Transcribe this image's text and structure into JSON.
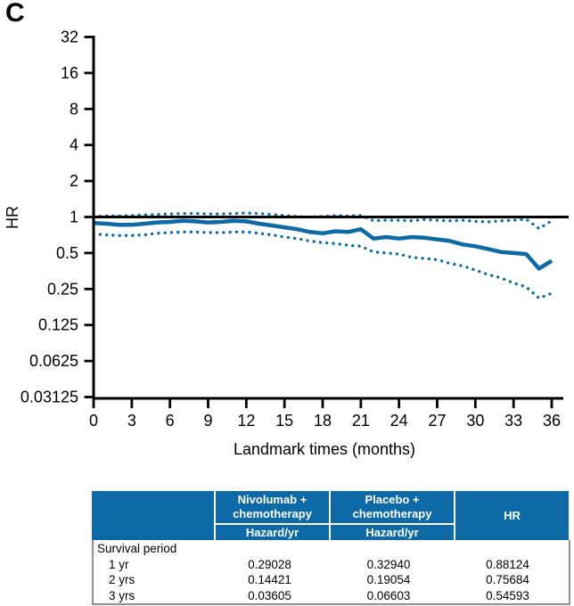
{
  "panel_label": "C",
  "colors": {
    "accent_blue": "#0e6aa6",
    "reference_black": "#000000",
    "table_border_gray": "#8f8f8f"
  },
  "chart_data": {
    "type": "line",
    "title": "",
    "xlabel": "Landmark times (months)",
    "ylabel": "HR",
    "grid": false,
    "legend_position": "none",
    "x_axis": {
      "min": 0,
      "max": 36,
      "ticks": [
        0,
        3,
        6,
        9,
        12,
        15,
        18,
        21,
        24,
        27,
        30,
        33,
        36
      ]
    },
    "y_axis": {
      "scale": "log2",
      "min": 0.03125,
      "max": 32,
      "ticks": [
        32,
        16,
        8,
        4,
        2,
        1,
        0.5,
        0.25,
        0.125,
        0.0625,
        0.03125
      ],
      "tick_labels": [
        "32",
        "16",
        "8",
        "4",
        "2",
        "1",
        "0.5",
        "0.25",
        "0.125",
        "0.0625",
        "0.03125"
      ]
    },
    "reference_line_y": 1,
    "x": [
      0,
      1,
      2,
      3,
      4,
      5,
      6,
      7,
      8,
      9,
      10,
      11,
      12,
      13,
      14,
      15,
      16,
      17,
      18,
      19,
      20,
      21,
      22,
      23,
      24,
      25,
      26,
      27,
      28,
      29,
      30,
      31,
      32,
      33,
      34,
      35,
      36
    ],
    "series": [
      {
        "name": "HR",
        "line_style": "solid",
        "color": "#0e6aa6",
        "values": [
          0.89,
          0.88,
          0.86,
          0.86,
          0.88,
          0.9,
          0.91,
          0.93,
          0.92,
          0.9,
          0.91,
          0.93,
          0.92,
          0.88,
          0.85,
          0.82,
          0.79,
          0.75,
          0.73,
          0.76,
          0.75,
          0.79,
          0.66,
          0.68,
          0.66,
          0.68,
          0.67,
          0.65,
          0.63,
          0.59,
          0.57,
          0.54,
          0.51,
          0.5,
          0.49,
          0.37,
          0.43
        ]
      },
      {
        "name": "CI upper",
        "line_style": "dotted",
        "color": "#0e6aa6",
        "values": [
          1.01,
          1.02,
          1.02,
          1.03,
          1.04,
          1.05,
          1.06,
          1.07,
          1.07,
          1.06,
          1.06,
          1.07,
          1.08,
          1.07,
          1.05,
          1.03,
          1.01,
          1.0,
          1.01,
          1.03,
          1.02,
          1.03,
          0.93,
          0.94,
          0.94,
          0.93,
          0.95,
          0.94,
          0.93,
          0.94,
          0.92,
          0.91,
          0.93,
          0.94,
          0.96,
          0.8,
          0.93
        ]
      },
      {
        "name": "CI lower",
        "line_style": "dotted",
        "color": "#0e6aa6",
        "values": [
          0.72,
          0.71,
          0.7,
          0.7,
          0.71,
          0.73,
          0.74,
          0.75,
          0.75,
          0.74,
          0.74,
          0.75,
          0.75,
          0.73,
          0.71,
          0.68,
          0.66,
          0.63,
          0.61,
          0.6,
          0.58,
          0.57,
          0.51,
          0.5,
          0.49,
          0.46,
          0.45,
          0.44,
          0.41,
          0.39,
          0.36,
          0.33,
          0.31,
          0.28,
          0.26,
          0.21,
          0.23
        ]
      }
    ]
  },
  "table": {
    "headers": {
      "group1": "Nivolumab +\nchemotherapy",
      "group2": "Placebo +\nchemotherapy",
      "hr": "HR",
      "sub1": "Hazard/yr",
      "sub2": "Hazard/yr"
    },
    "section_label": "Survival period",
    "rows": [
      {
        "period": "1 yr",
        "nivo": "0.29028",
        "placebo": "0.32940",
        "hr": "0.88124"
      },
      {
        "period": "2 yrs",
        "nivo": "0.14421",
        "placebo": "0.19054",
        "hr": "0.75684"
      },
      {
        "period": "3 yrs",
        "nivo": "0.03605",
        "placebo": "0.06603",
        "hr": "0.54593"
      }
    ]
  }
}
